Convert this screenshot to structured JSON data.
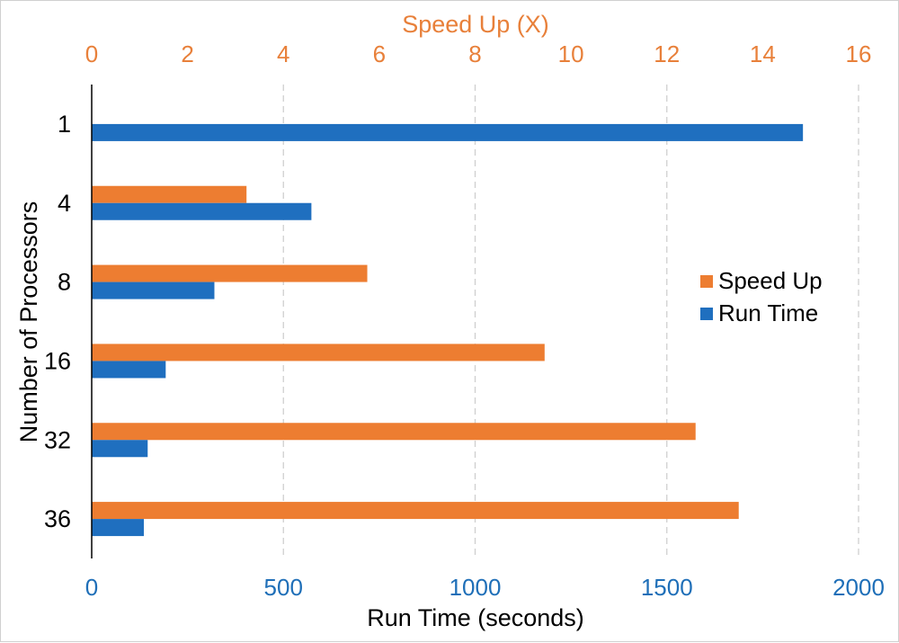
{
  "chart_data": {
    "type": "bar",
    "orientation": "horizontal",
    "ylabel": "Number of Processors",
    "categories": [
      "1",
      "4",
      "8",
      "16",
      "32",
      "36"
    ],
    "bottom_axis": {
      "label": "Run Time (seconds)",
      "range": [
        0,
        2000
      ],
      "ticks": [
        "0",
        "500",
        "1000",
        "1500",
        "2000"
      ],
      "color": "#1f6fb8"
    },
    "top_axis": {
      "label": "Speed Up (X)",
      "range": [
        0,
        16
      ],
      "ticks": [
        "0",
        "2",
        "4",
        "6",
        "8",
        "10",
        "12",
        "14",
        "16"
      ],
      "color": "#e8803a"
    },
    "series": [
      {
        "name": "Speed Up",
        "axis": "top",
        "color": "#ed7d31",
        "values": [
          null,
          3.23,
          5.75,
          9.45,
          12.6,
          13.5
        ]
      },
      {
        "name": "Run Time",
        "axis": "bottom",
        "color": "#1f6fbf",
        "values": [
          1855,
          573,
          320,
          193,
          146,
          136
        ]
      }
    ],
    "legend": {
      "entries": [
        "Speed Up",
        "Run Time"
      ],
      "placement": "right"
    },
    "grid": "vertical-dashed"
  }
}
